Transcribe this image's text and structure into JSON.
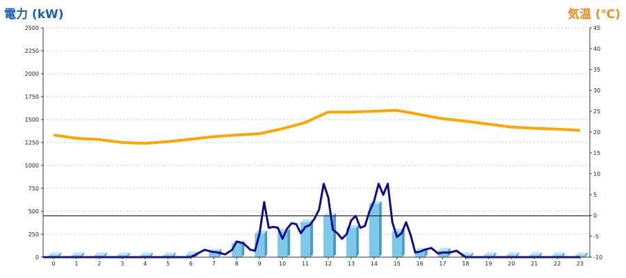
{
  "chart_data": {
    "type": "bar+line",
    "left_axis_title": "電力 (kW)",
    "right_axis_title": "気温 (℃)",
    "colors": {
      "left_title": "#1a5fb4",
      "right_title": "#f08a24",
      "bars": "#7ec8ea",
      "bars_side": "#4a9cc4",
      "bars_top": "#b6e2f4",
      "power_line": "#0d0d8c",
      "temperature_line": "#ffa500",
      "grid": "#c8c8c8",
      "axis": "#333333"
    },
    "y_left": {
      "min": 0,
      "max": 2500,
      "ticks": [
        0,
        250,
        500,
        750,
        1000,
        1250,
        1500,
        1750,
        2000,
        2250,
        2500
      ]
    },
    "y_right": {
      "min": -10,
      "max": 45,
      "ticks": [
        -10,
        -5,
        0,
        5,
        10,
        15,
        20,
        25,
        30,
        35,
        40,
        45
      ]
    },
    "reference_line_left": 450,
    "categories": [
      "0",
      "1",
      "2",
      "3",
      "4",
      "5",
      "6",
      "7",
      "8",
      "9",
      "10",
      "11",
      "12",
      "13",
      "14",
      "15",
      "16",
      "17",
      "18",
      "19",
      "20",
      "21",
      "22",
      "23"
    ],
    "hourly_power_bars": [
      20,
      20,
      20,
      20,
      20,
      20,
      30,
      60,
      150,
      260,
      280,
      380,
      450,
      320,
      580,
      280,
      70,
      70,
      20,
      20,
      20,
      20,
      20,
      20
    ],
    "power_line": {
      "x": [
        0,
        1,
        2,
        3,
        4,
        5,
        6,
        6.3,
        6.6,
        6.9,
        7.2,
        7.5,
        7.8,
        8.0,
        8.3,
        8.6,
        8.8,
        9.0,
        9.2,
        9.4,
        9.6,
        9.8,
        10.0,
        10.2,
        10.4,
        10.6,
        10.8,
        11.0,
        11.2,
        11.4,
        11.6,
        11.8,
        12.0,
        12.2,
        12.4,
        12.6,
        12.8,
        13.0,
        13.2,
        13.4,
        13.6,
        13.8,
        14.0,
        14.2,
        14.4,
        14.6,
        14.8,
        15.0,
        15.2,
        15.4,
        15.6,
        15.8,
        16.0,
        16.2,
        16.5,
        16.8,
        17.0,
        17.3,
        17.6
      ],
      "y": [
        0,
        0,
        0,
        0,
        0,
        0,
        0,
        40,
        80,
        60,
        50,
        30,
        80,
        170,
        150,
        80,
        70,
        260,
        600,
        320,
        330,
        320,
        200,
        310,
        370,
        360,
        260,
        330,
        350,
        420,
        520,
        800,
        650,
        300,
        260,
        200,
        250,
        400,
        450,
        320,
        340,
        500,
        610,
        800,
        680,
        800,
        380,
        220,
        260,
        380,
        240,
        50,
        60,
        80,
        100,
        40,
        50,
        50,
        70
      ],
      "drop_after_x": 17.6,
      "drop_to_x": 18.0,
      "tail": [
        [
          18,
          0
        ],
        [
          23,
          0
        ]
      ]
    },
    "temperature_line": {
      "x": [
        0,
        1,
        2,
        3,
        4,
        5,
        6,
        7,
        8,
        9,
        10,
        11,
        12,
        13,
        14,
        15,
        16,
        17,
        18,
        19,
        20,
        21,
        22,
        23
      ],
      "y": [
        19.3,
        18.5,
        18.2,
        17.5,
        17.3,
        17.7,
        18.3,
        18.9,
        19.3,
        19.6,
        20.8,
        22.3,
        24.8,
        24.8,
        25.0,
        25.2,
        24.2,
        23.2,
        22.6,
        21.9,
        21.2,
        20.9,
        20.7,
        20.4
      ]
    }
  }
}
